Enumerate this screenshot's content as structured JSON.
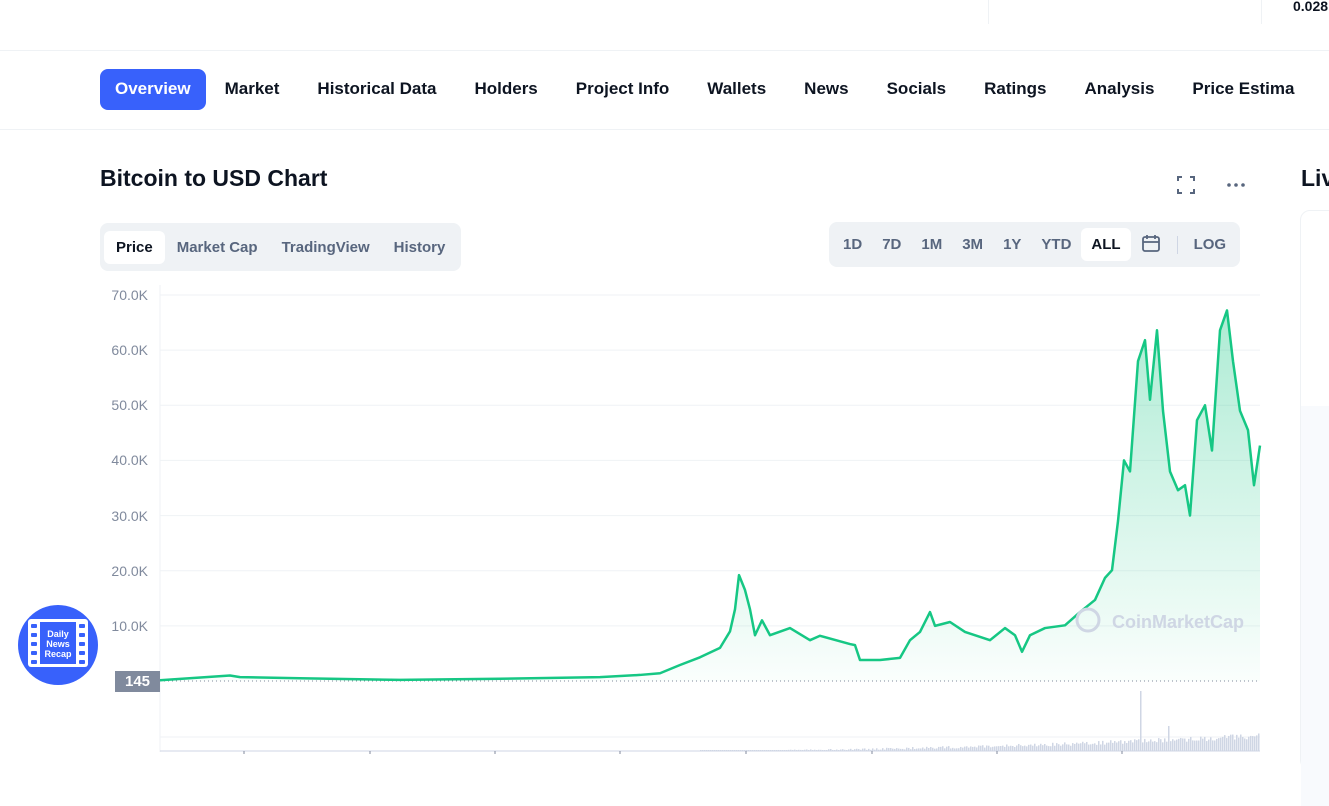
{
  "topbar": {
    "value": "0.028"
  },
  "nav": {
    "tabs": [
      "Overview",
      "Market",
      "Historical Data",
      "Holders",
      "Project Info",
      "Wallets",
      "News",
      "Socials",
      "Ratings",
      "Analysis",
      "Price Estima"
    ],
    "active": 0
  },
  "chart_header": {
    "title": "Bitcoin to USD Chart",
    "fullscreen_icon": "expand-icon",
    "more_icon": "ellipsis-icon"
  },
  "chart_tabs": {
    "options": [
      "Price",
      "Market Cap",
      "TradingView",
      "History"
    ],
    "active": "Price"
  },
  "ranges": {
    "options": [
      "1D",
      "7D",
      "1M",
      "3M",
      "1Y",
      "YTD",
      "ALL"
    ],
    "active": "ALL",
    "calendar_icon": "calendar-icon",
    "log_label": "LOG"
  },
  "side": {
    "title": "Liv"
  },
  "badge": {
    "text": "Daily News Recap"
  },
  "colors": {
    "accent": "#3861fb",
    "line": "#16c784"
  },
  "chart_data": {
    "type": "area",
    "ylim": [
      0,
      70000
    ],
    "y_ticks": [
      "70.0K",
      "60.0K",
      "50.0K",
      "40.0K",
      "30.0K",
      "20.0K",
      "10.0K"
    ],
    "current_price_label": "145",
    "watermark": "CoinMarketCap",
    "grid": true,
    "values": [
      145,
      1000,
      700,
      500,
      200,
      400,
      700,
      1100,
      1400,
      2900,
      4300,
      6000,
      9000,
      13000,
      19200,
      16500,
      13000,
      8300,
      11000,
      8300,
      9600,
      7400,
      8200,
      6700,
      6500,
      3800,
      3800,
      4200,
      7400,
      8900,
      12500,
      10000,
      10700,
      8900,
      7400,
      9600,
      8300,
      5300,
      8300,
      9600,
      10100,
      12500,
      14700,
      18700,
      20100,
      29000,
      40000,
      38000,
      58000,
      61800,
      51000,
      63600,
      49000,
      38000,
      34600,
      35500,
      30000,
      47300,
      50000,
      41800,
      63600,
      67200,
      58000,
      49000,
      45500,
      35500,
      42700
    ]
  }
}
